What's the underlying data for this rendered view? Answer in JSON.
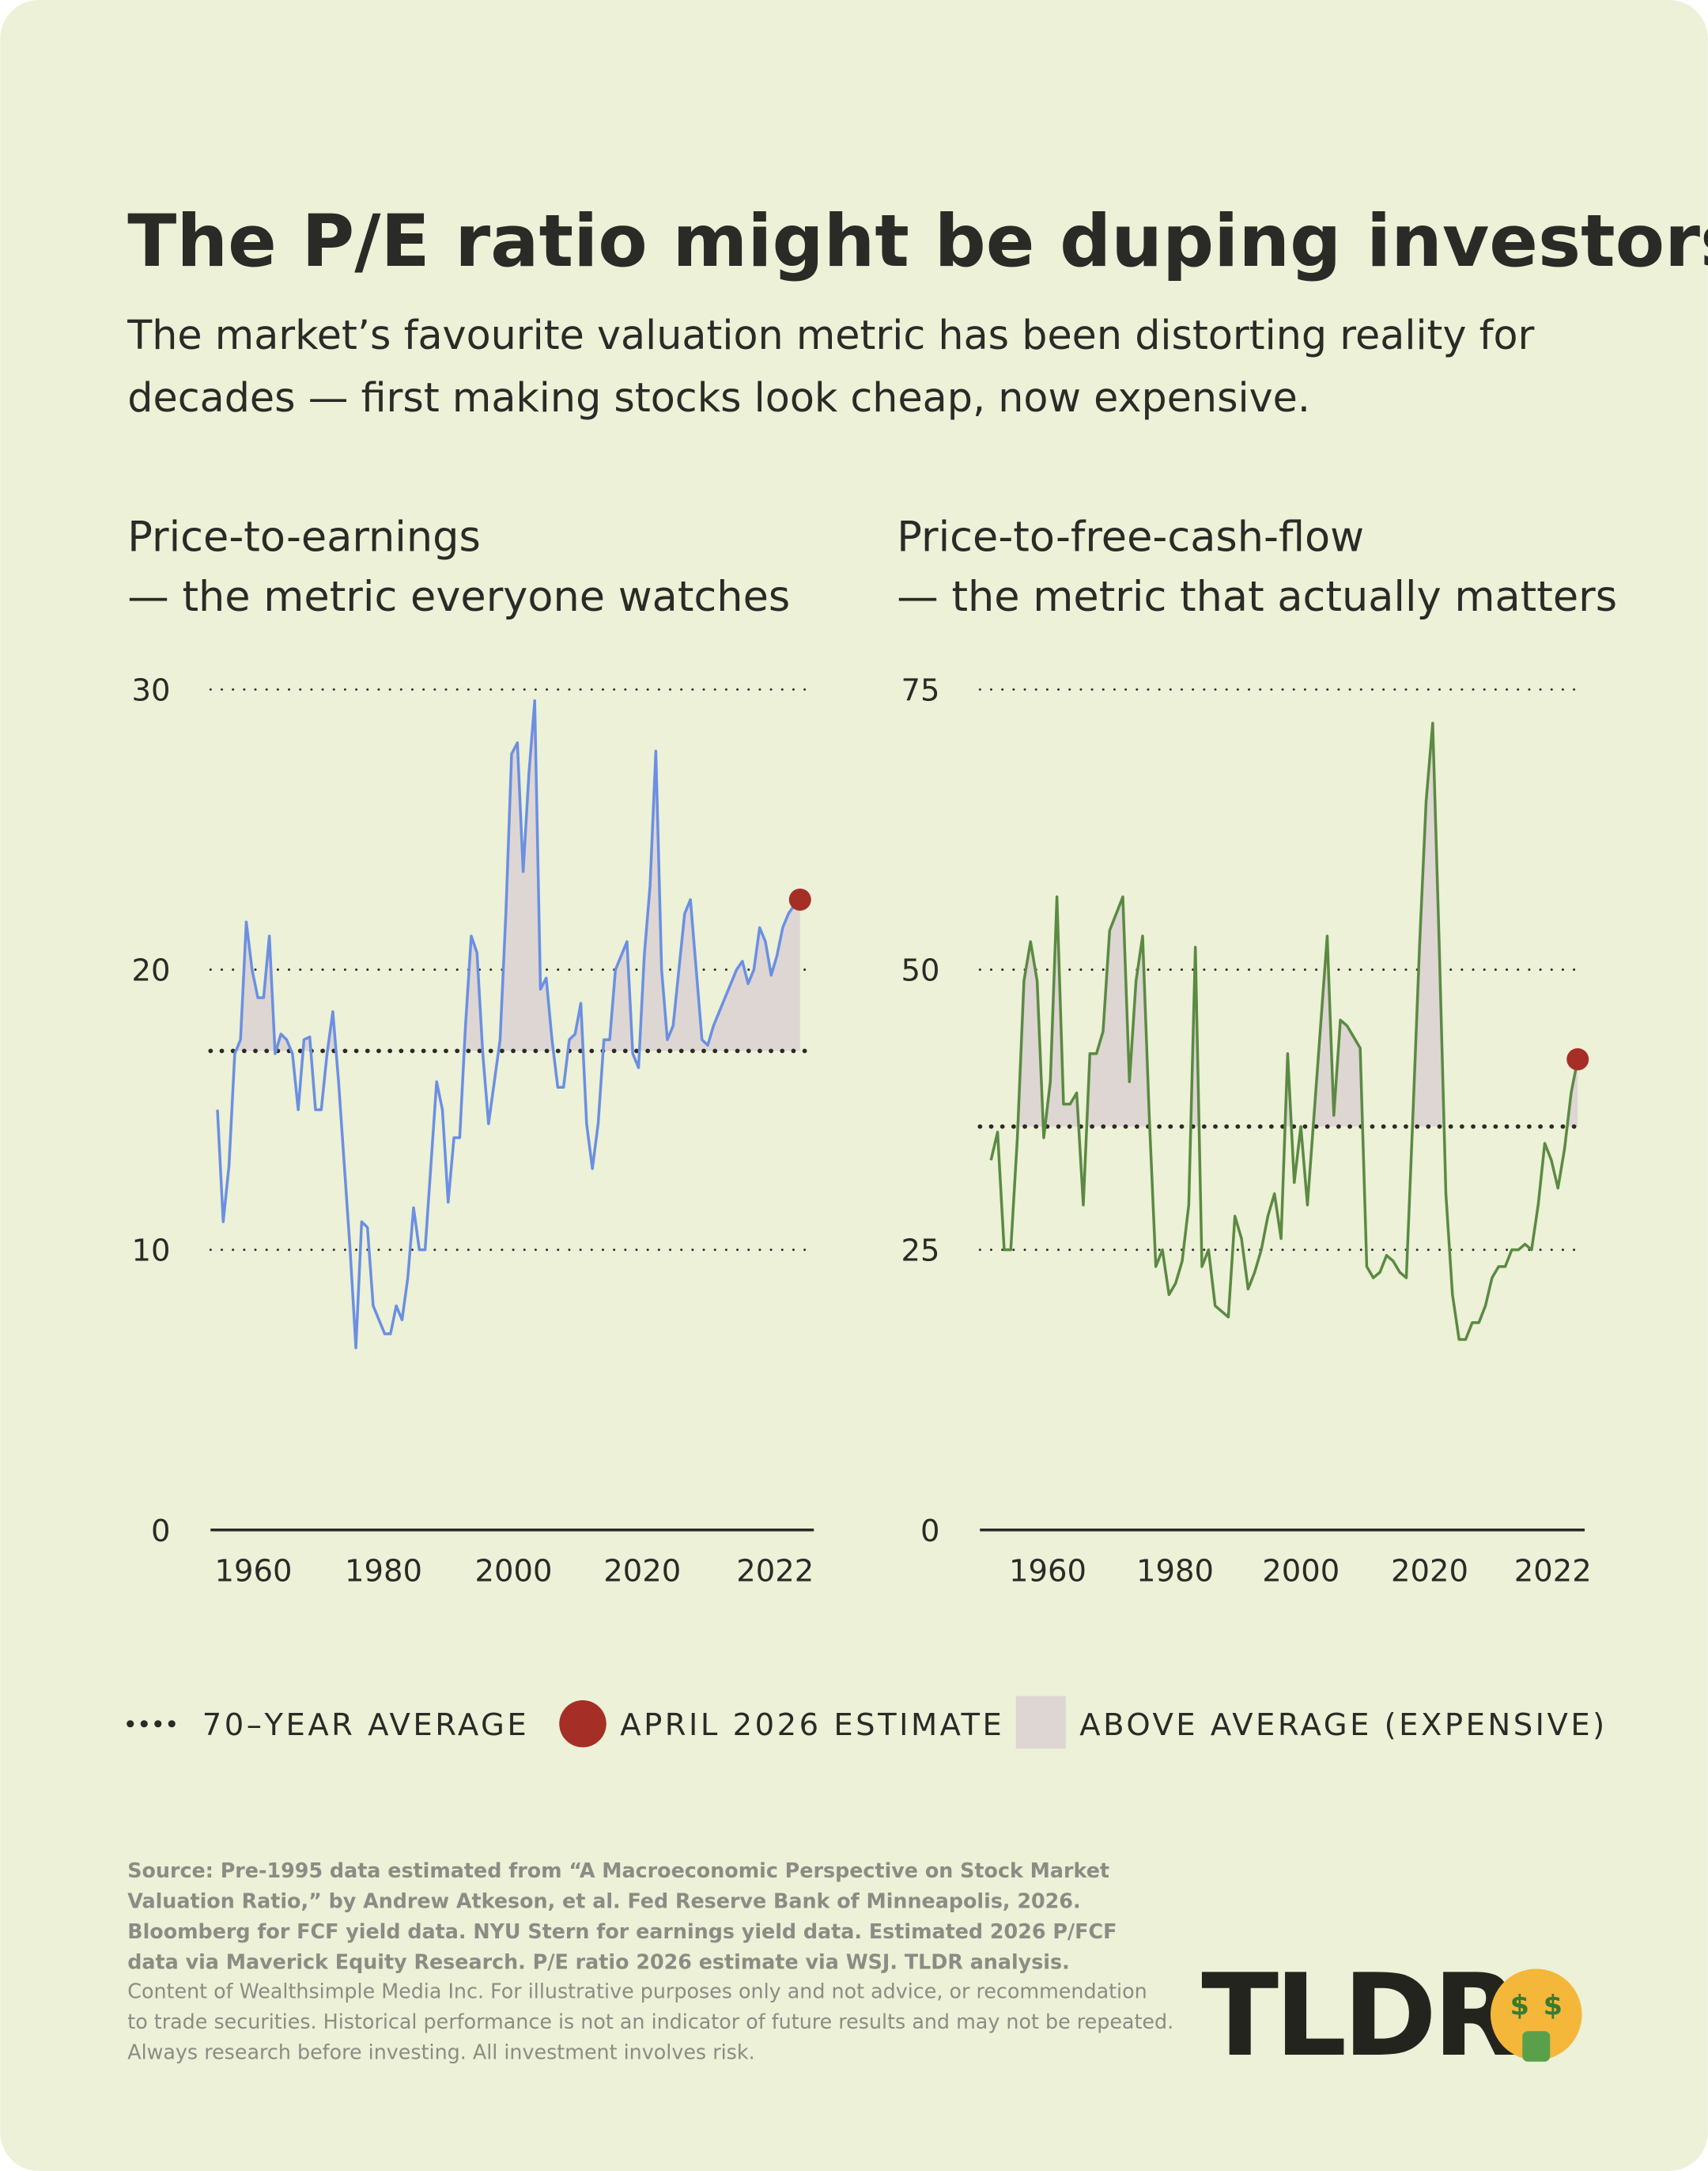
{
  "title": "The P/E ratio might be duping investors",
  "subtitle": [
    "The market’s favourite valuation metric has been distorting reality for",
    "decades — first making stocks look cheap, now expensive."
  ],
  "chart_data": [
    {
      "type": "line",
      "title": [
        "Price-to-earnings",
        "— the metric everyone watches"
      ],
      "color": "#6b8fe3",
      "ylim": [
        0,
        30
      ],
      "yticks": [
        0,
        10,
        20,
        30
      ],
      "average": 17.1,
      "xtick_labels": [
        "1960",
        "1980",
        "2000",
        "2020",
        "2022"
      ],
      "values": [
        15,
        11,
        13,
        17,
        17.5,
        21.7,
        20,
        19,
        19,
        21.2,
        17,
        17.7,
        17.5,
        17,
        15,
        17.5,
        17.6,
        15,
        15,
        17,
        18.5,
        16,
        13,
        10,
        6.5,
        11,
        10.8,
        8,
        7.5,
        7,
        7,
        8,
        7.5,
        9,
        11.5,
        10,
        10,
        13,
        16,
        15,
        11.7,
        14,
        14,
        18,
        21.2,
        20.6,
        17,
        14.5,
        16,
        17.5,
        22,
        27.7,
        28.1,
        23.5,
        27,
        29.6,
        19.3,
        19.7,
        17.5,
        15.8,
        15.8,
        17.5,
        17.7,
        18.8,
        14.5,
        12.9,
        14.5,
        17.5,
        17.5,
        20,
        20.5,
        21,
        17,
        16.5,
        20.5,
        23,
        27.8,
        20,
        17.5,
        18,
        20,
        22,
        22.5,
        20,
        17.5,
        17.3,
        18,
        18.5,
        19,
        19.5,
        20,
        20.3,
        19.5,
        20,
        21.5,
        21,
        19.8,
        20.5,
        21.5,
        22,
        22.3,
        22.5
      ]
    },
    {
      "type": "line",
      "title": [
        "Price-to-free-cash-flow",
        "— the metric that actually matters"
      ],
      "color": "#5b8a42",
      "ylim": [
        0,
        75
      ],
      "yticks": [
        0,
        25,
        50,
        75
      ],
      "average": 36,
      "xtick_labels": [
        "1960",
        "1980",
        "2000",
        "2020",
        "2022"
      ],
      "values": [
        33,
        35.5,
        25,
        25,
        35,
        49,
        52.5,
        49,
        35,
        40,
        56.5,
        38,
        38,
        39,
        29,
        42.5,
        42.5,
        44.5,
        53.5,
        55,
        56.5,
        40,
        49,
        53,
        37,
        23.5,
        25,
        21,
        22,
        24,
        29,
        52,
        23.5,
        25,
        20,
        19.5,
        19,
        28,
        26,
        21.5,
        23,
        25,
        28,
        30,
        26,
        42.5,
        31,
        36,
        29,
        37,
        45,
        53,
        37,
        45.5,
        45,
        44,
        43,
        23.5,
        22.5,
        23,
        24.5,
        24,
        23,
        22.5,
        37,
        52,
        65,
        72,
        52,
        30,
        21,
        17,
        17,
        18.5,
        18.5,
        20,
        22.5,
        23.5,
        23.5,
        25,
        25,
        25.5,
        25,
        29,
        34.5,
        33,
        30.5,
        34,
        39,
        42
      ]
    }
  ],
  "legend": {
    "average_label": "70–YEAR AVERAGE",
    "estimate_label": "APRIL 2026 ESTIMATE",
    "estimate_color": "#a52f27",
    "above_label": "ABOVE AVERAGE (EXPENSIVE)",
    "above_color": "#ddd6d2"
  },
  "source": [
    "Source: Pre-1995 data estimated from “A Macroeconomic Perspective on Stock Market",
    "Valuation Ratio,” by Andrew Atkeson, et al. Fed Reserve Bank of Minneapolis, 2026.",
    "Bloomberg for FCF yield data. NYU Stern for earnings yield data. Estimated 2026 P/FCF",
    "data via Maverick Equity Research. P/E ratio 2026 estimate via WSJ. TLDR analysis."
  ],
  "disclaimer": [
    "Content of Wealthsimple Media Inc. For illustrative purposes only and not advice, or recommendation",
    "to trade securities. Historical performance is not an indicator of future results and may not be repeated.",
    "Always research before investing. All investment involves risk."
  ],
  "logo": "TLDR"
}
